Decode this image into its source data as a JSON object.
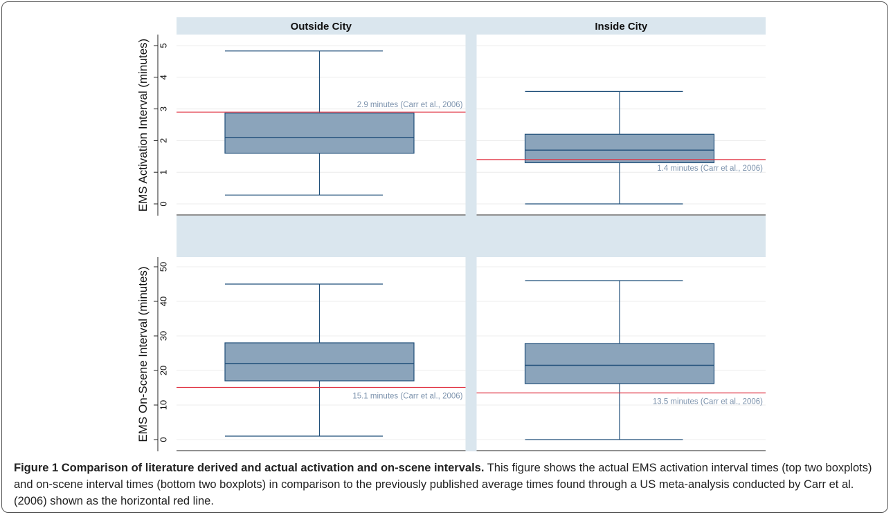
{
  "colors": {
    "strip_background": "#dae6ee",
    "panel_background": "#ffffff",
    "box_fill": "#8ba4bb",
    "box_stroke": "#1f4e79",
    "whisker": "#1f4e79",
    "reference_line": "#e03040",
    "reference_text": "#7d93ad",
    "gridline": "#ececec"
  },
  "caption": {
    "title": "Figure 1 Comparison of literature derived and actual activation and on-scene intervals.",
    "body": " This figure shows the actual EMS activation interval times (top two boxplots) and on-scene interval times (bottom two boxplots) in comparison to the previously published average times found through a US meta-analysis conducted by Carr et al. (2006) shown as the horizontal red line."
  },
  "chart_data": {
    "type": "boxplot",
    "columns": [
      "Outside City",
      "Inside City"
    ],
    "legend": "none",
    "grid": true,
    "rows": [
      {
        "ylabel": "EMS Activation Interval (minutes)",
        "ylim": [
          0,
          5
        ],
        "ticks": [
          "0",
          "1",
          "2",
          "3",
          "4",
          "5"
        ],
        "tick_values": [
          0,
          1,
          2,
          3,
          4,
          5
        ],
        "panels": [
          {
            "group": "Outside City",
            "min": 0.28,
            "q1": 1.6,
            "median": 2.1,
            "q3": 2.87,
            "max": 4.83,
            "reference": 2.9,
            "reference_label": "2.9 minutes (Carr et al., 2006)",
            "label_side": "above"
          },
          {
            "group": "Inside City",
            "min": 0.0,
            "q1": 1.3,
            "median": 1.7,
            "q3": 2.2,
            "max": 3.55,
            "reference": 1.4,
            "reference_label": "1.4 minutes (Carr et al., 2006)",
            "label_side": "below"
          }
        ]
      },
      {
        "ylabel": "EMS On-Scene Interval (minutes)",
        "ylim": [
          0,
          50
        ],
        "ticks": [
          "0",
          "10",
          "20",
          "30",
          "40",
          "50"
        ],
        "tick_values": [
          0,
          10,
          20,
          30,
          40,
          50
        ],
        "panels": [
          {
            "group": "Outside City",
            "min": 1.0,
            "q1": 17.0,
            "median": 22.0,
            "q3": 28.0,
            "max": 45.0,
            "reference": 15.1,
            "reference_label": "15.1 minutes (Carr et al., 2006)",
            "label_side": "below"
          },
          {
            "group": "Inside City",
            "min": 0.0,
            "q1": 16.2,
            "median": 21.5,
            "q3": 27.8,
            "max": 46.0,
            "reference": 13.5,
            "reference_label": "13.5 minutes (Carr et al., 2006)",
            "label_side": "below"
          }
        ]
      }
    ]
  }
}
